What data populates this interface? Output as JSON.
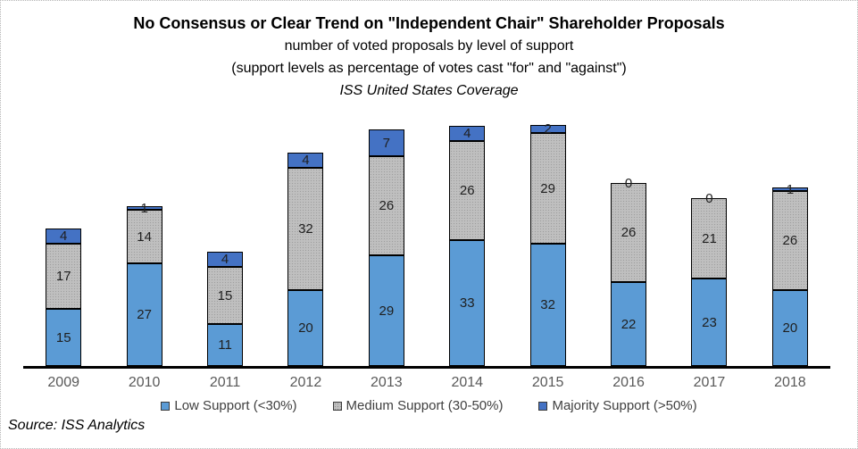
{
  "header": {
    "title": "No Consensus or Clear Trend on \"Independent Chair\" Shareholder Proposals",
    "subtitle1": "number of voted proposals by level of support",
    "subtitle2": "(support levels as percentage of votes cast \"for\" and \"against\")",
    "subtitle3": "ISS United States Coverage"
  },
  "chart_data": {
    "type": "bar",
    "stacked": true,
    "title": "No Consensus or Clear Trend on \"Independent Chair\" Shareholder Proposals",
    "xlabel": "",
    "ylabel": "",
    "ylim": [
      0,
      65
    ],
    "gridlines": false,
    "y_axis_visible": false,
    "data_labels": true,
    "legend_position": "bottom",
    "categories": [
      "2009",
      "2010",
      "2011",
      "2012",
      "2013",
      "2014",
      "2015",
      "2016",
      "2017",
      "2018"
    ],
    "series": [
      {
        "name": "Low Support (<30%)",
        "color": "#5B9BD5",
        "pattern": "solid",
        "values": [
          15,
          27,
          11,
          20,
          29,
          33,
          32,
          22,
          23,
          20
        ]
      },
      {
        "name": "Medium Support (30-50%)",
        "color": "#BFBFBF",
        "pattern": "dotted",
        "values": [
          17,
          14,
          15,
          32,
          26,
          26,
          29,
          26,
          21,
          26
        ]
      },
      {
        "name": "Majority Support (>50%)",
        "color": "#4472C4",
        "pattern": "solid",
        "values": [
          4,
          1,
          4,
          4,
          7,
          4,
          2,
          0,
          0,
          1
        ]
      }
    ]
  },
  "footer": {
    "source": "Source: ISS Analytics"
  }
}
